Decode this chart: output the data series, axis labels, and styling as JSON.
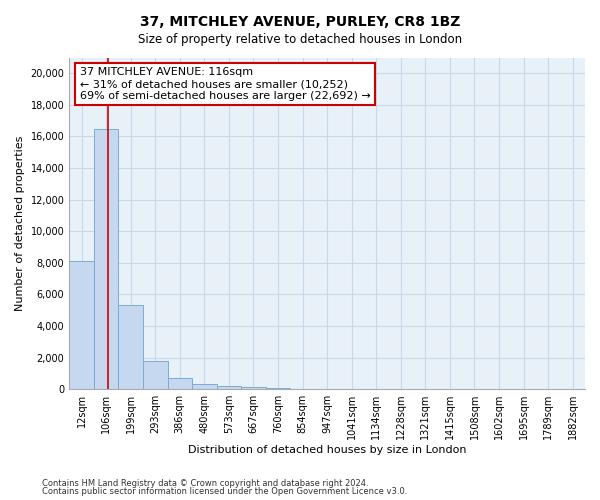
{
  "title": "37, MITCHLEY AVENUE, PURLEY, CR8 1BZ",
  "subtitle": "Size of property relative to detached houses in London",
  "xlabel": "Distribution of detached houses by size in London",
  "ylabel": "Number of detached properties",
  "bin_labels": [
    "12sqm",
    "106sqm",
    "199sqm",
    "293sqm",
    "386sqm",
    "480sqm",
    "573sqm",
    "667sqm",
    "760sqm",
    "854sqm",
    "947sqm",
    "1041sqm",
    "1134sqm",
    "1228sqm",
    "1321sqm",
    "1415sqm",
    "1508sqm",
    "1602sqm",
    "1695sqm",
    "1789sqm",
    "1882sqm"
  ],
  "bar_heights": [
    8100,
    16500,
    5300,
    1800,
    700,
    350,
    200,
    150,
    100,
    0,
    0,
    0,
    0,
    0,
    0,
    0,
    0,
    0,
    0,
    0,
    0
  ],
  "bar_color": "#c5d8ef",
  "bar_edge_color": "#7aadd4",
  "grid_color": "#c8d8e8",
  "background_color": "#ffffff",
  "plot_bg_color": "#e8f0f8",
  "vline_x": 1.08,
  "vline_color": "#cc0000",
  "annotation_line1": "37 MITCHLEY AVENUE: 116sqm",
  "annotation_line2": "← 31% of detached houses are smaller (10,252)",
  "annotation_line3": "69% of semi-detached houses are larger (22,692) →",
  "annotation_box_color": "#cc0000",
  "ylim": [
    0,
    21000
  ],
  "yticks": [
    0,
    2000,
    4000,
    6000,
    8000,
    10000,
    12000,
    14000,
    16000,
    18000,
    20000
  ],
  "footer_line1": "Contains HM Land Registry data © Crown copyright and database right 2024.",
  "footer_line2": "Contains public sector information licensed under the Open Government Licence v3.0.",
  "title_fontsize": 10,
  "subtitle_fontsize": 8.5,
  "tick_fontsize": 7,
  "ylabel_fontsize": 8,
  "xlabel_fontsize": 8,
  "annotation_fontsize": 8,
  "footer_fontsize": 6
}
